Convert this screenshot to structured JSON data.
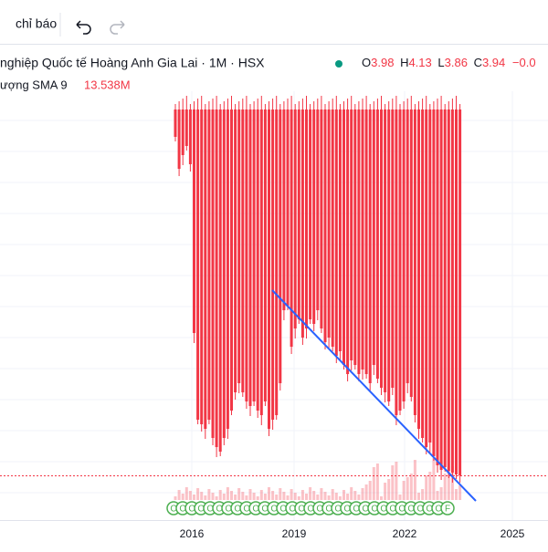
{
  "toolbar": {
    "indicators_button": "chỉ báo"
  },
  "legend": {
    "title": "nghiệp Quốc tế Hoàng Anh Gia Lai · 1M · HSX",
    "open_label": "O",
    "open": "3.98",
    "high_label": "H",
    "high": "4.13",
    "low_label": "L",
    "low": "3.86",
    "close_label": "C",
    "close": "3.94",
    "change": "−0.0",
    "volume_label": "ượng SMA 9",
    "volume": "13.538M"
  },
  "x_axis": {
    "labels": [
      "2016",
      "2019",
      "2022",
      "2025"
    ]
  },
  "events": {
    "marker": "C",
    "last_marker": "F"
  }
}
